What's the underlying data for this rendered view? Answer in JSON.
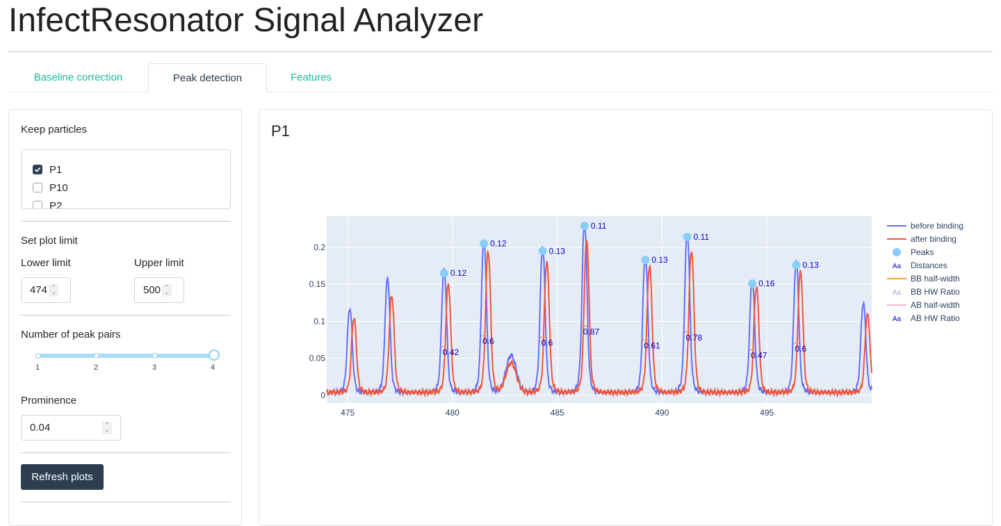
{
  "app": {
    "title": "InfectResonator Signal Analyzer"
  },
  "tabs": [
    {
      "label": "Baseline correction",
      "active": false
    },
    {
      "label": "Peak detection",
      "active": true
    },
    {
      "label": "Features",
      "active": false
    }
  ],
  "sidebar": {
    "keep_particles_label": "Keep particles",
    "particles": [
      {
        "label": "P1",
        "checked": true
      },
      {
        "label": "P10",
        "checked": false
      },
      {
        "label": "P2",
        "checked": false
      }
    ],
    "plot_limit_label": "Set plot limit",
    "lower_limit_label": "Lower limit",
    "lower_limit_value": "474",
    "upper_limit_label": "Upper limit",
    "upper_limit_value": "500",
    "peak_pairs_label": "Number of peak pairs",
    "peak_pairs_ticks": [
      "1",
      "2",
      "3",
      "4"
    ],
    "peak_pairs_value": 4,
    "prominence_label": "Prominence",
    "prominence_value": "0.04",
    "refresh_button": "Refresh plots"
  },
  "main": {
    "card_title": "P1"
  },
  "colors": {
    "accent": "#18bc9c",
    "primary": "#2c3e50",
    "before_binding": "#636efa",
    "after_binding": "#ef553b",
    "peaks": "#87cefa",
    "annotation_text": "#0000cd",
    "plot_bg": "#e5ecf6"
  },
  "chart_data": {
    "type": "line",
    "title": "",
    "xlabel": "",
    "ylabel": "",
    "xlim": [
      474,
      500
    ],
    "ylim": [
      0,
      0.23
    ],
    "x_ticks": [
      475,
      480,
      485,
      490,
      495
    ],
    "y_ticks": [
      0,
      0.05,
      0.1,
      0.15,
      0.2
    ],
    "y_tick_labels": [
      "0",
      "0.05",
      "0.1",
      "0.15",
      "0.2"
    ],
    "legend": [
      {
        "name": "before binding",
        "symbol": "line",
        "color": "#636efa"
      },
      {
        "name": "after binding",
        "symbol": "line",
        "color": "#ef553b"
      },
      {
        "name": "Peaks",
        "symbol": "dot",
        "color": "#87cefa"
      },
      {
        "name": "Distances",
        "symbol": "text",
        "color": "#0000cd"
      },
      {
        "name": "BB half-width",
        "symbol": "line",
        "color": "#f5a04a"
      },
      {
        "name": "BB HW Ratio",
        "symbol": "text",
        "color": "#9aa7d8"
      },
      {
        "name": "AB half-width",
        "symbol": "line",
        "color": "#f5b7c9"
      },
      {
        "name": "AB HW Ratio",
        "symbol": "text",
        "color": "#0000cd"
      }
    ],
    "legend_position": "right",
    "peaks_before": [
      {
        "x": 475.1,
        "y": 0.113
      },
      {
        "x": 476.9,
        "y": 0.153
      },
      {
        "x": 479.6,
        "y": 0.165
      },
      {
        "x": 481.5,
        "y": 0.205
      },
      {
        "x": 484.3,
        "y": 0.195
      },
      {
        "x": 486.3,
        "y": 0.229
      },
      {
        "x": 489.2,
        "y": 0.183
      },
      {
        "x": 491.2,
        "y": 0.214
      },
      {
        "x": 494.3,
        "y": 0.151
      },
      {
        "x": 496.4,
        "y": 0.176
      },
      {
        "x": 499.6,
        "y": 0.12
      }
    ],
    "peaks_after": [
      {
        "x": 475.3,
        "y": 0.1
      },
      {
        "x": 477.1,
        "y": 0.13
      },
      {
        "x": 479.8,
        "y": 0.145
      },
      {
        "x": 481.7,
        "y": 0.19
      },
      {
        "x": 484.5,
        "y": 0.175
      },
      {
        "x": 486.4,
        "y": 0.204
      },
      {
        "x": 489.4,
        "y": 0.17
      },
      {
        "x": 491.4,
        "y": 0.191
      },
      {
        "x": 494.5,
        "y": 0.142
      },
      {
        "x": 496.6,
        "y": 0.162
      },
      {
        "x": 499.8,
        "y": 0.105
      }
    ],
    "bump": {
      "x": 482.8,
      "y_before": 0.05,
      "y_after": 0.04
    },
    "detected_peaks": [
      {
        "x": 479.6,
        "y": 0.165,
        "label": "0.12"
      },
      {
        "x": 481.5,
        "y": 0.205,
        "label": "0.12"
      },
      {
        "x": 484.3,
        "y": 0.195,
        "label": "0.13"
      },
      {
        "x": 486.3,
        "y": 0.229,
        "label": "0.11"
      },
      {
        "x": 489.2,
        "y": 0.183,
        "label": "0.13"
      },
      {
        "x": 491.2,
        "y": 0.214,
        "label": "0.11"
      },
      {
        "x": 494.3,
        "y": 0.151,
        "label": "0.16"
      },
      {
        "x": 496.4,
        "y": 0.176,
        "label": "0.13"
      }
    ],
    "hw_ratios": [
      {
        "x": 479.6,
        "y": 0.075,
        "label": "0.42"
      },
      {
        "x": 481.5,
        "y": 0.09,
        "label": "0.6"
      },
      {
        "x": 484.3,
        "y": 0.088,
        "label": "0.6"
      },
      {
        "x": 486.3,
        "y": 0.103,
        "label": "0.87"
      },
      {
        "x": 489.2,
        "y": 0.084,
        "label": "0.61"
      },
      {
        "x": 491.2,
        "y": 0.095,
        "label": "0.78"
      },
      {
        "x": 494.3,
        "y": 0.071,
        "label": "0.47"
      },
      {
        "x": 496.4,
        "y": 0.08,
        "label": "0.6"
      }
    ]
  }
}
